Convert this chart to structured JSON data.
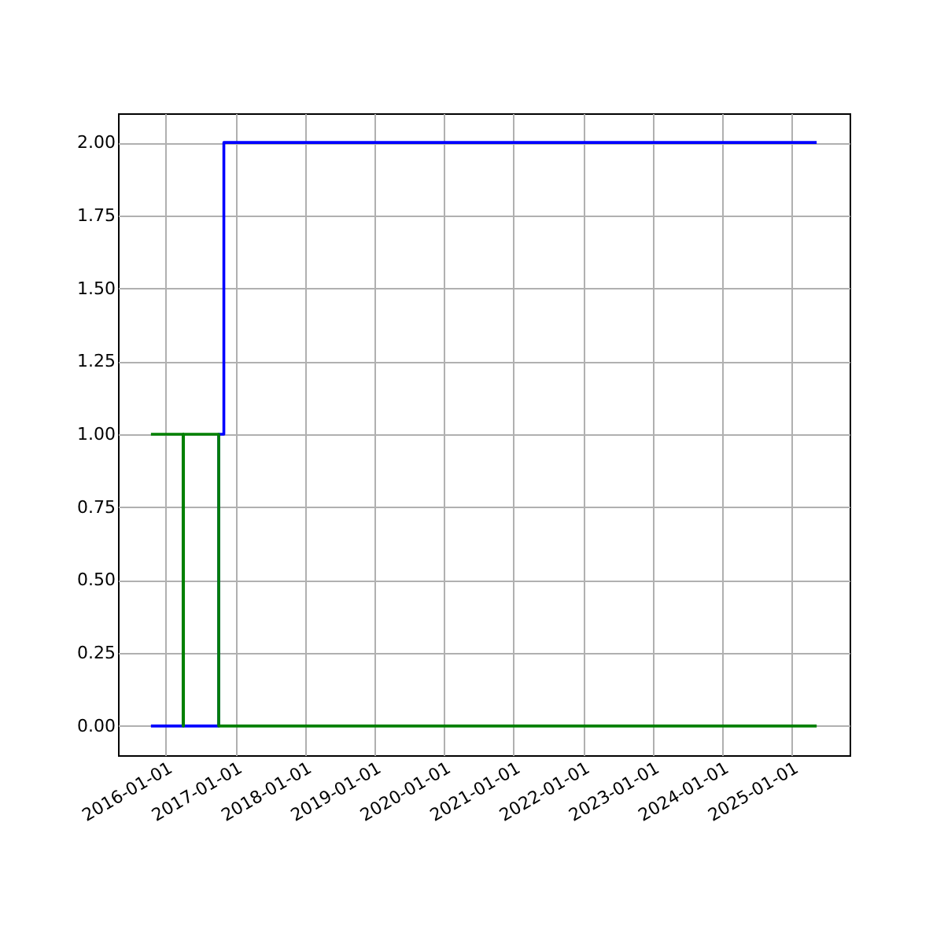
{
  "chart_data": {
    "type": "step",
    "xlim": [
      "2015-04-25",
      "2025-11-01"
    ],
    "ylim": [
      -0.1,
      2.1
    ],
    "xticks": [
      "2016-01-01",
      "2017-01-01",
      "2018-01-01",
      "2019-01-01",
      "2020-01-01",
      "2021-01-01",
      "2022-01-01",
      "2023-01-01",
      "2024-01-01",
      "2025-01-01"
    ],
    "yticks": [
      {
        "value": 0,
        "label": "0.00"
      },
      {
        "value": 0.25,
        "label": "0.25"
      },
      {
        "value": 0.5,
        "label": "0.50"
      },
      {
        "value": 0.75,
        "label": "0.75"
      },
      {
        "value": 1,
        "label": "1.00"
      },
      {
        "value": 1.25,
        "label": "1.25"
      },
      {
        "value": 1.5,
        "label": "1.50"
      },
      {
        "value": 1.75,
        "label": "1.75"
      },
      {
        "value": 2,
        "label": "2.00"
      }
    ],
    "grid": true,
    "series": [
      {
        "color": "#0000ff",
        "x": [
          "2015-10-15",
          "2016-10-05",
          "2016-11-01",
          "2025-05-12"
        ],
        "values": [
          0,
          1,
          2,
          2
        ]
      },
      {
        "color": "#008000",
        "x": [
          "2015-10-15",
          "2016-04-01",
          "2016-04-03",
          "2016-10-05",
          "2025-05-12"
        ],
        "values": [
          1,
          0,
          1,
          0,
          0
        ]
      }
    ]
  }
}
